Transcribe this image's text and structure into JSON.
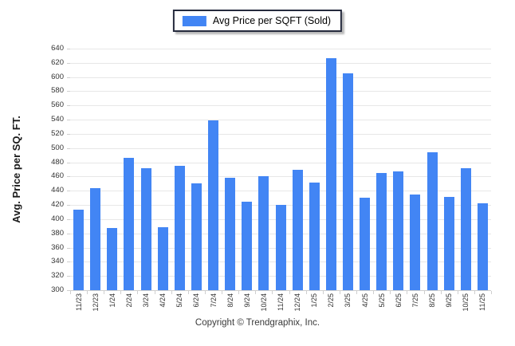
{
  "legend": {
    "label": "Avg Price per SQFT (Sold)",
    "swatch_color": "#4285f4"
  },
  "chart_data": {
    "type": "bar",
    "title": "",
    "xlabel": "",
    "ylabel": "Avg. Price per SQ. FT.",
    "ylim": [
      300,
      640
    ],
    "ytick_step": 20,
    "grid": true,
    "legend_position": "top-center",
    "bar_color": "#4285f4",
    "series_name": "Avg Price per SQFT (Sold)",
    "categories": [
      "11/23",
      "12/23",
      "1/24",
      "2/24",
      "3/24",
      "4/24",
      "5/24",
      "6/24",
      "7/24",
      "8/24",
      "9/24",
      "10/24",
      "11/24",
      "12/24",
      "1/25",
      "2/25",
      "3/25",
      "4/25",
      "5/25",
      "6/25",
      "7/25",
      "8/25",
      "9/25",
      "10/25",
      "11/25"
    ],
    "values": [
      413,
      444,
      387,
      486,
      472,
      389,
      475,
      450,
      539,
      458,
      425,
      460,
      420,
      469,
      452,
      627,
      605,
      430,
      465,
      467,
      435,
      494,
      431,
      472,
      422
    ]
  },
  "footer": {
    "copyright": "Copyright © Trendgraphix, Inc."
  }
}
